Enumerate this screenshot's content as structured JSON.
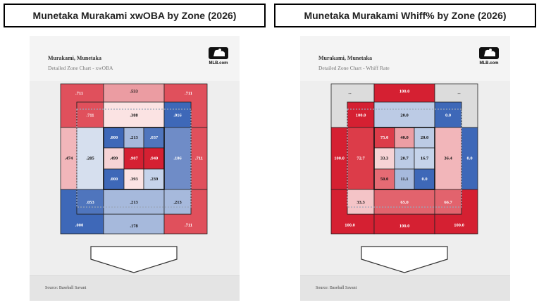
{
  "titles": {
    "left": "Munetaka Murakami xwOBA by Zone (2026)",
    "right": "Munetaka Murakami Whiff% by Zone (2026)"
  },
  "charts": [
    {
      "player": "Murakami, Munetaka",
      "subtitle": "Detailed Zone Chart - xwOBA",
      "logo_text": "MLB.com",
      "source": "Source: Baseball Savant"
    },
    {
      "player": "Murakami, Munetaka",
      "subtitle": "Detailed Zone Chart - Whiff Rate",
      "logo_text": "MLB.com",
      "source": "Source: Baseball Savant"
    }
  ],
  "chart_data": [
    {
      "type": "heatmap",
      "title": "Munetaka Murakami xwOBA by Zone (2026)",
      "metric": "xwOBA",
      "outer": {
        "top_left": ".711",
        "top": ".533",
        "top_right": ".711",
        "left": ".474",
        "right": ".711",
        "bottom_left": ".000",
        "bottom": ".178",
        "bottom_right": ".711"
      },
      "shadow": {
        "top_left": ".711",
        "top": ".388",
        "top_right": ".016",
        "left": ".285",
        "right": ".106",
        "bottom_left": ".053",
        "bottom": ".213",
        "bottom_right": ".213"
      },
      "heart": [
        [
          ".000",
          ".213",
          ".037"
        ],
        [
          ".499",
          ".907",
          ".940"
        ],
        [
          ".000",
          ".393",
          ".239"
        ]
      ],
      "colors": {
        "outer": {
          "top_left": "#e0505c",
          "top": "#eb9ca2",
          "top_right": "#e0505c",
          "left": "#f2b6ba",
          "right": "#e0505c",
          "bottom_left": "#3e68b8",
          "bottom": "#a6b9dc",
          "bottom_right": "#e0505c"
        },
        "shadow": {
          "top_left": "#e0505c",
          "top": "#fbe3e3",
          "top_right": "#3e68b8",
          "left": "#d6dfee",
          "right": "#6f8cc7",
          "bottom_left": "#4f75bd",
          "bottom": "#a6b9dc",
          "bottom_right": "#a6b9dc"
        },
        "heart": [
          [
            "#3e68b8",
            "#a6b9dc",
            "#4f75bd"
          ],
          [
            "#f6d3d5",
            "#d52032",
            "#d52032"
          ],
          [
            "#3e68b8",
            "#fbe3e3",
            "#c5d3ea"
          ]
        ]
      }
    },
    {
      "type": "heatmap",
      "title": "Munetaka Murakami Whiff% by Zone (2026)",
      "metric": "Whiff Rate",
      "outer": {
        "top_left": "--",
        "top": "100.0",
        "top_right": "--",
        "left": "100.0",
        "right": "0.0",
        "bottom_left": "100.0",
        "bottom": "100.0",
        "bottom_right": "100.0"
      },
      "shadow": {
        "top_left": "100.0",
        "top": "20.0",
        "top_right": "0.0",
        "left": "72.7",
        "right": "36.4",
        "bottom_left": "33.3",
        "bottom": "65.0",
        "bottom_right": "66.7"
      },
      "heart": [
        [
          "75.0",
          "40.0",
          "20.0"
        ],
        [
          "33.3",
          "20.7",
          "16.7"
        ],
        [
          "50.0",
          "11.1",
          "0.0"
        ]
      ],
      "colors": {
        "outer": {
          "top_left": "#dcdcdc",
          "top": "#d52032",
          "top_right": "#dcdcdc",
          "left": "#d52032",
          "right": "#3e68b8",
          "bottom_left": "#d52032",
          "bottom": "#d52032",
          "bottom_right": "#d52032"
        },
        "shadow": {
          "top_left": "#d52032",
          "top": "#bccbe5",
          "top_right": "#3e68b8",
          "left": "#dc3c49",
          "right": "#f2b6ba",
          "bottom_left": "#f4c4c7",
          "bottom": "#e2636d",
          "bottom_right": "#e2636d"
        },
        "heart": [
          [
            "#dc3c49",
            "#ec9ea4",
            "#bccbe5"
          ],
          [
            "#f6d3d5",
            "#bccbe5",
            "#c5d3ea"
          ],
          [
            "#e56b74",
            "#a6b9dc",
            "#3e68b8"
          ]
        ]
      }
    }
  ]
}
